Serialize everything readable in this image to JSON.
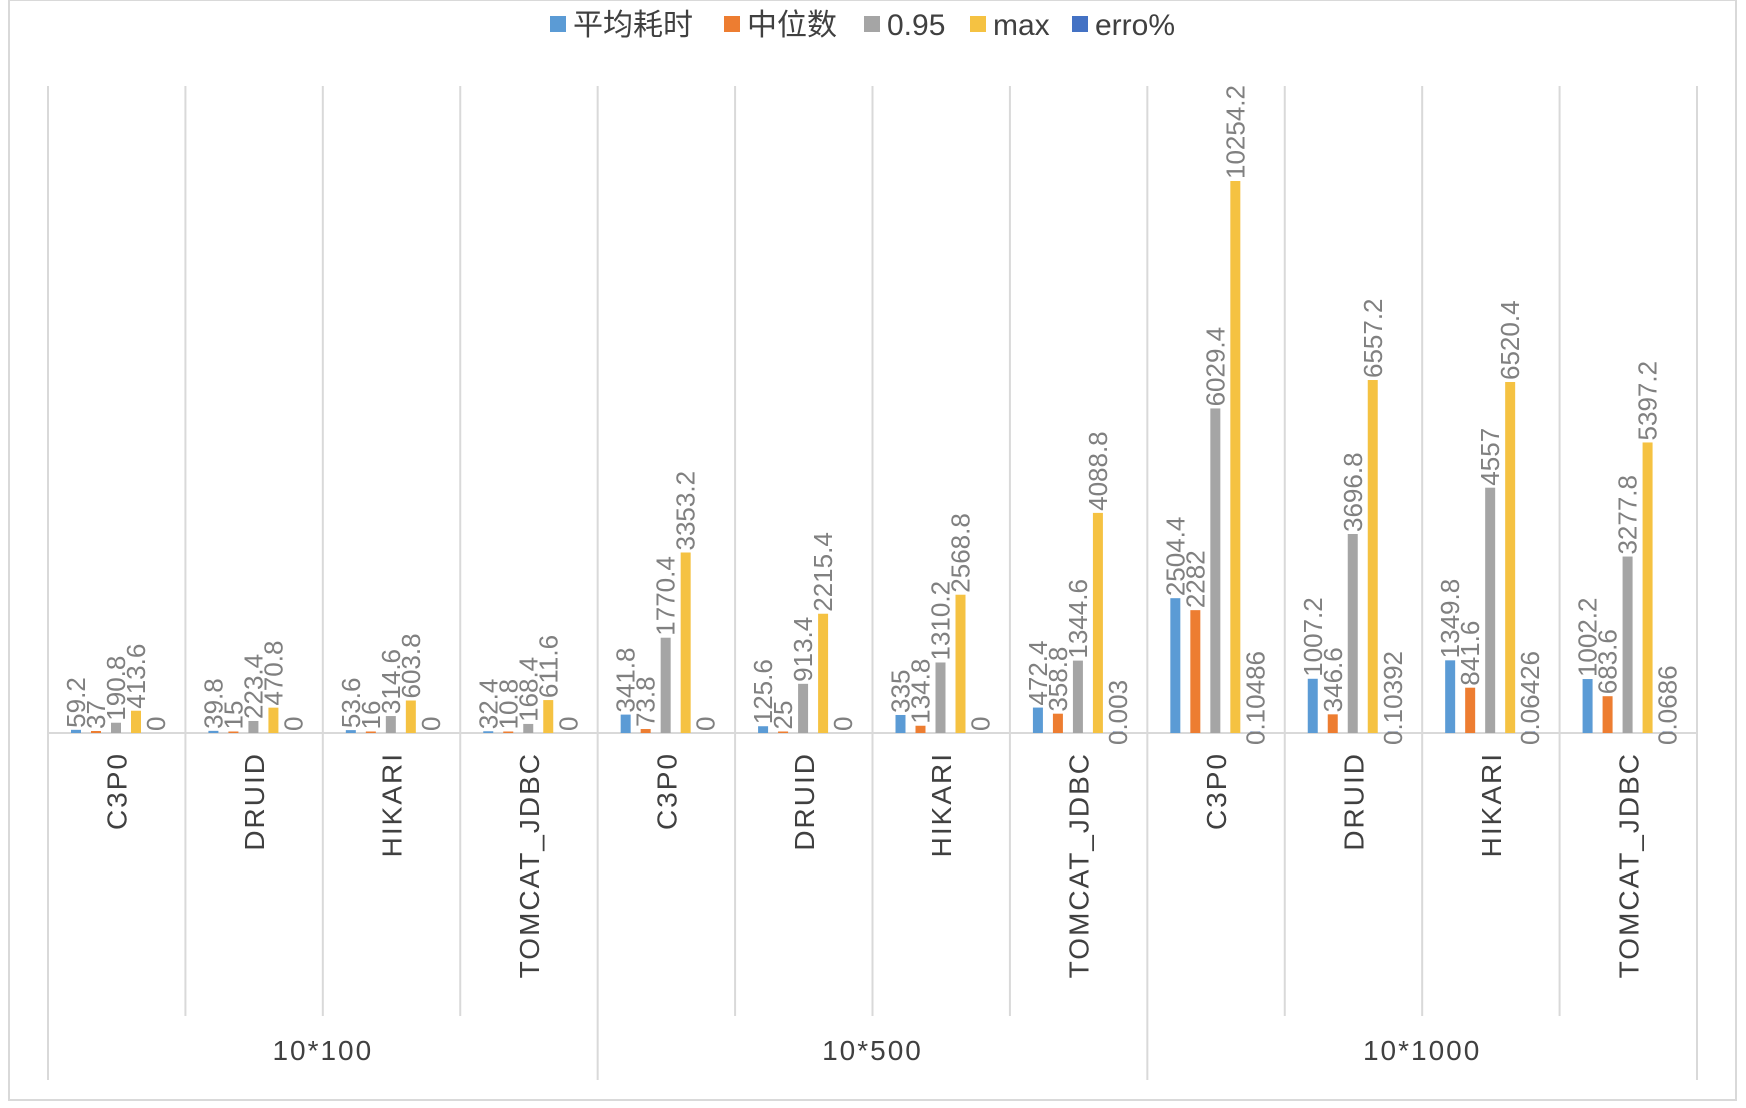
{
  "chart_data": {
    "type": "bar",
    "title": "",
    "xlabel": "",
    "ylabel": "",
    "grid": false,
    "legend_position": "top",
    "groups": [
      "10*100",
      "10*500",
      "10*1000"
    ],
    "categories": [
      "C3P0",
      "DRUID",
      "HIKARI",
      "TOMCAT_JDBC",
      "C3P0",
      "DRUID",
      "HIKARI",
      "TOMCAT_JDBC",
      "C3P0",
      "DRUID",
      "HIKARI",
      "TOMCAT_JDBC"
    ],
    "series": [
      {
        "name": "平均耗时",
        "color": "#5B9BD5",
        "values": [
          59.2,
          39.8,
          53.6,
          32.4,
          341.8,
          125.6,
          335,
          472.4,
          2504.4,
          1007.2,
          1349.8,
          1002.2
        ],
        "labels": [
          "59.2",
          "39.8",
          "53.6",
          "32.4",
          "341.8",
          "125.6",
          "335",
          "472.4",
          "2504.4",
          "1007.2",
          "1349.8",
          "1002.2"
        ]
      },
      {
        "name": "中位数",
        "color": "#ED7D31",
        "values": [
          37,
          15,
          16,
          10.8,
          73.8,
          25,
          134.8,
          358.8,
          2282,
          346.6,
          841.6,
          683.6
        ],
        "labels": [
          "37",
          "15",
          "16",
          "10.8",
          "73.8",
          "25",
          "134.8",
          "358.8",
          "2282",
          "346.6",
          "841.6",
          "683.6"
        ]
      },
      {
        "name": "0.95",
        "color": "#A5A5A5",
        "values": [
          190.8,
          223.4,
          314.6,
          168.4,
          1770.4,
          913.4,
          1310.2,
          1344.6,
          6029.4,
          3696.8,
          4557,
          3277.8
        ],
        "labels": [
          "190.8",
          "223.4",
          "314.6",
          "168.4",
          "1770.4",
          "913.4",
          "1310.2",
          "1344.6",
          "6029.4",
          "3696.8",
          "4557",
          "3277.8"
        ]
      },
      {
        "name": "max",
        "color": "#F5C242",
        "values": [
          413.6,
          470.8,
          603.8,
          611.6,
          3353.2,
          2215.4,
          2568.8,
          4088.8,
          10254.2,
          6557.2,
          6520.4,
          5397.2
        ],
        "labels": [
          "413.6",
          "470.8",
          "603.8",
          "611.6",
          "3353.2",
          "2215.4",
          "2568.8",
          "4088.8",
          "10254.2",
          "6557.2",
          "6520.4",
          "5397.2"
        ]
      },
      {
        "name": "erro%",
        "color": "#4472C4",
        "values": [
          0,
          0,
          0,
          0,
          0,
          0,
          0,
          0.003,
          0.10486,
          0.10392,
          0.06426,
          0.0686
        ],
        "labels": [
          "0",
          "0",
          "0",
          "0",
          "0",
          "0",
          "0",
          "0.003",
          "0.10486",
          "0.10392",
          "0.06426",
          "0.0686"
        ]
      }
    ]
  }
}
